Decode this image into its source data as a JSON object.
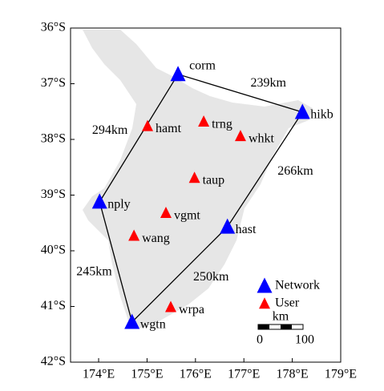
{
  "map": {
    "xlim": [
      173.42,
      179
    ],
    "ylim": [
      36,
      42
    ],
    "xticks": [
      {
        "value": 174,
        "label": "174°E"
      },
      {
        "value": 175,
        "label": "175°E"
      },
      {
        "value": 176,
        "label": "176°E"
      },
      {
        "value": 177,
        "label": "177°E"
      },
      {
        "value": 178,
        "label": "178°E"
      },
      {
        "value": 179,
        "label": "179°E"
      }
    ],
    "yticks": [
      {
        "value": 36,
        "label": "36°S"
      },
      {
        "value": 37,
        "label": "37°S"
      },
      {
        "value": 38,
        "label": "38°S"
      },
      {
        "value": 39,
        "label": "39°S"
      },
      {
        "value": 40,
        "label": "40°S"
      },
      {
        "value": 41,
        "label": "41°S"
      },
      {
        "value": 42,
        "label": "42°S"
      }
    ],
    "groups": [
      {
        "name": "Network",
        "color": "#0000ff",
        "stations": [
          {
            "name": "corm",
            "lon": 175.64,
            "lat": 36.83
          },
          {
            "name": "hikb",
            "lon": 178.21,
            "lat": 37.51
          },
          {
            "name": "nply",
            "lon": 174.02,
            "lat": 39.12
          },
          {
            "name": "wgtn",
            "lon": 174.69,
            "lat": 41.28
          },
          {
            "name": "hast",
            "lon": 176.66,
            "lat": 39.57
          }
        ]
      },
      {
        "name": "User",
        "color": "#ff0000",
        "stations": [
          {
            "name": "hamt",
            "lon": 175.01,
            "lat": 37.76
          },
          {
            "name": "trng",
            "lon": 176.17,
            "lat": 37.68
          },
          {
            "name": "whkt",
            "lon": 176.93,
            "lat": 37.94
          },
          {
            "name": "taup",
            "lon": 175.98,
            "lat": 38.69
          },
          {
            "name": "vgmt",
            "lon": 175.39,
            "lat": 39.32
          },
          {
            "name": "wang",
            "lon": 174.73,
            "lat": 39.73
          },
          {
            "name": "wrpa",
            "lon": 175.49,
            "lat": 41.01
          }
        ]
      }
    ],
    "links": [
      {
        "from": "corm",
        "to": "hikb",
        "label": "239km"
      },
      {
        "from": "hikb",
        "to": "hast",
        "label": "266km"
      },
      {
        "from": "hast",
        "to": "wgtn",
        "label": "250km"
      },
      {
        "from": "wgtn",
        "to": "nply",
        "label": "245km"
      },
      {
        "from": "nply",
        "to": "corm",
        "label": "294km"
      }
    ],
    "scale_bar": {
      "unit": "km",
      "start": "0",
      "end": "100"
    }
  }
}
